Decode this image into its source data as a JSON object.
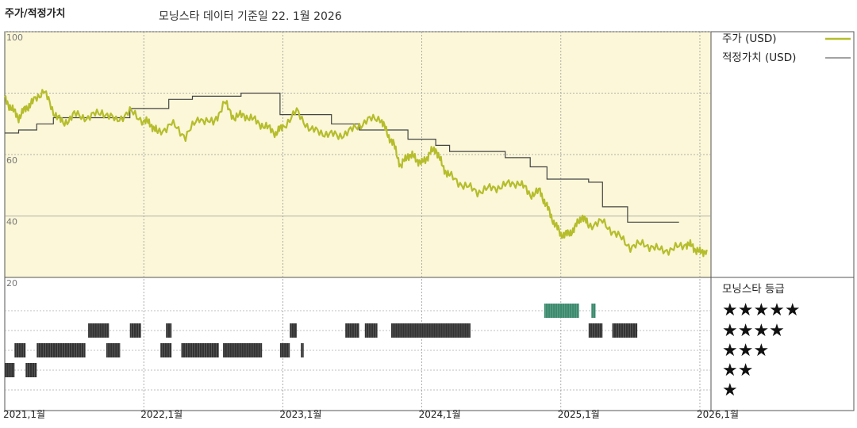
{
  "header": {
    "left_title": "주가/적정가치",
    "subtitle": "모닝스타 데이터 기준일 22. 1월 2026"
  },
  "legend": {
    "price_label": "주가 (USD)",
    "fair_label": "적정가치 (USD)",
    "rating_label": "모닝스타 등급",
    "stars": [
      "★★★★★",
      "★★★★",
      "★★★",
      "★★",
      "★"
    ]
  },
  "colors": {
    "price": "#b5bd2c",
    "fair_value": "#444444",
    "plot_bg": "#fbf7d8",
    "rating_bar": "#333333",
    "rating_bar_5star": "#3b8a6e"
  },
  "chart_data": [
    {
      "type": "line",
      "title": "",
      "xlabel": "",
      "ylabel": "",
      "x_ticks": [
        "2021,1월",
        "2022,1월",
        "2023,1월",
        "2024,1월",
        "2025,1월",
        "2026,1월"
      ],
      "y_ticks": [
        20,
        40,
        60,
        100
      ],
      "ylim": [
        20,
        100
      ],
      "xlim": [
        2021.0,
        2026.08
      ],
      "grid": true,
      "legend_position": "right",
      "series": [
        {
          "name": "주가 (USD)",
          "x": [
            2021.0,
            2021.05,
            2021.1,
            2021.15,
            2021.2,
            2021.28,
            2021.35,
            2021.42,
            2021.5,
            2021.6,
            2021.7,
            2021.8,
            2021.9,
            2022.0,
            2022.05,
            2022.1,
            2022.2,
            2022.3,
            2022.4,
            2022.5,
            2022.58,
            2022.65,
            2022.72,
            2022.8,
            2022.88,
            2022.95,
            2023.0,
            2023.1,
            2023.2,
            2023.3,
            2023.4,
            2023.5,
            2023.6,
            2023.7,
            2023.75,
            2023.8,
            2023.85,
            2023.9,
            2023.95,
            2024.0,
            2024.05,
            2024.1,
            2024.15,
            2024.2,
            2024.3,
            2024.4,
            2024.5,
            2024.6,
            2024.7,
            2024.78,
            2024.85,
            2024.9,
            2024.95,
            2025.0,
            2025.05,
            2025.1,
            2025.15,
            2025.2,
            2025.3,
            2025.4,
            2025.5,
            2025.6,
            2025.7,
            2025.8,
            2025.9,
            2025.95,
            2026.0,
            2026.05
          ],
          "values": [
            78,
            75,
            72,
            75,
            77,
            81,
            74,
            70,
            73,
            72,
            74,
            71,
            74,
            71,
            70,
            67,
            70,
            66,
            72,
            70,
            77,
            72,
            73,
            71,
            69,
            67,
            69,
            74,
            68,
            67,
            66,
            68,
            71,
            72,
            67,
            63,
            56,
            60,
            59,
            57,
            60,
            62,
            56,
            53,
            50,
            48,
            49,
            50,
            51,
            47,
            48,
            43,
            38,
            34,
            34,
            36,
            40,
            37,
            38,
            34,
            30,
            31,
            29,
            29,
            31,
            30,
            28,
            29
          ]
        },
        {
          "name": "적정가치 (USD)",
          "x": [
            2021.0,
            2021.1,
            2021.1,
            2021.23,
            2021.23,
            2021.35,
            2021.35,
            2021.9,
            2021.9,
            2022.18,
            2022.18,
            2022.35,
            2022.35,
            2022.7,
            2022.7,
            2022.98,
            2022.98,
            2023.35,
            2023.35,
            2023.55,
            2023.55,
            2023.9,
            2023.9,
            2024.1,
            2024.1,
            2024.2,
            2024.2,
            2024.6,
            2024.6,
            2024.78,
            2024.78,
            2024.9,
            2024.9,
            2025.2,
            2025.2,
            2025.3,
            2025.3,
            2025.48,
            2025.48,
            2025.85
          ],
          "values": [
            67,
            67,
            68,
            68,
            70,
            70,
            72,
            72,
            75,
            75,
            78,
            78,
            79,
            79,
            80,
            80,
            73,
            73,
            70,
            70,
            68,
            68,
            65,
            65,
            63,
            63,
            61,
            61,
            59,
            59,
            56,
            56,
            52,
            52,
            51,
            51,
            43,
            43,
            38,
            38
          ]
        }
      ]
    },
    {
      "type": "bar",
      "title": "",
      "xlabel": "",
      "ylabel": "모닝스타 등급",
      "categories": [
        "★",
        "★★",
        "★★★",
        "★★★★",
        "★★★★★"
      ],
      "series": [
        {
          "name": "5",
          "segments": [
            [
              2024.88,
              2025.13
            ],
            [
              2025.22,
              2025.25
            ]
          ]
        },
        {
          "name": "4",
          "segments": [
            [
              2021.6,
              2021.75
            ],
            [
              2021.9,
              2021.98
            ],
            [
              2022.16,
              2022.2
            ],
            [
              2023.05,
              2023.1
            ],
            [
              2023.45,
              2023.55
            ],
            [
              2023.59,
              2023.68
            ],
            [
              2023.78,
              2024.35
            ],
            [
              2025.2,
              2025.3
            ],
            [
              2025.37,
              2025.55
            ]
          ]
        },
        {
          "name": "3",
          "segments": [
            [
              2021.07,
              2021.15
            ],
            [
              2021.23,
              2021.58
            ],
            [
              2021.73,
              2021.83
            ],
            [
              2022.12,
              2022.2
            ],
            [
              2022.27,
              2022.54
            ],
            [
              2022.57,
              2022.85
            ],
            [
              2022.98,
              2023.05
            ],
            [
              2023.13,
              2023.15
            ]
          ]
        },
        {
          "name": "2",
          "segments": [
            [
              2021.0,
              2021.07
            ],
            [
              2021.15,
              2021.23
            ]
          ]
        },
        {
          "name": "1",
          "segments": []
        }
      ]
    }
  ]
}
